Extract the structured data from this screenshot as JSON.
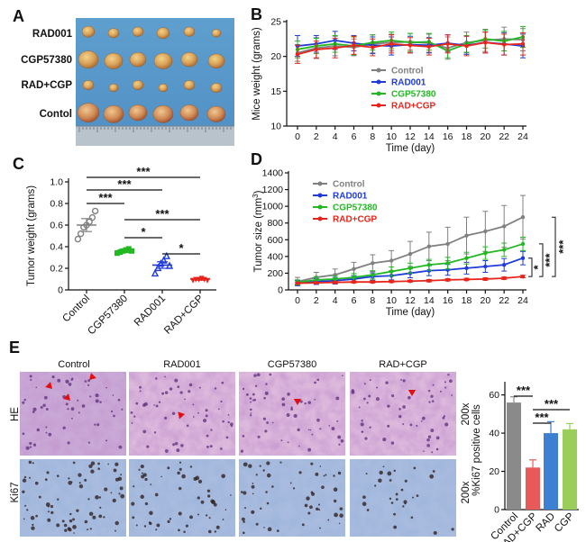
{
  "panel_labels": {
    "a": "A",
    "b": "B",
    "c": "C",
    "d": "D",
    "e": "E"
  },
  "panel_a": {
    "row_labels": [
      "RAD001",
      "CGP57380",
      "RAD+CGP",
      "Contol"
    ]
  },
  "panel_e": {
    "column_labels": [
      "Control",
      "RAD001",
      "CGP57380",
      "RAD+CGP"
    ],
    "row_labels": [
      "HE",
      "Ki67"
    ],
    "magnification_labels": [
      "200x",
      "200x"
    ]
  },
  "colors": {
    "control": "#808080",
    "rad001": "#1f3bdb",
    "cgp57380": "#22b822",
    "radcgp": "#e8251b",
    "arrow": "#e01010",
    "bar_control": "#8a8a8a",
    "bar_radcgp": "#e85a5a",
    "bar_rad": "#3d7fd1",
    "bar_cgp": "#9acd5a"
  },
  "chart_data": [
    {
      "id": "B",
      "type": "line",
      "title": "",
      "xlabel": "Time (day)",
      "ylabel": "Mice weight (grams)",
      "x": [
        0,
        2,
        4,
        6,
        8,
        10,
        12,
        14,
        16,
        18,
        20,
        22,
        24
      ],
      "xticks": [
        "0",
        "2",
        "4",
        "6",
        "8",
        "10",
        "12",
        "14",
        "16",
        "18",
        "20",
        "22",
        "24"
      ],
      "yticks": [
        "10",
        "15",
        "20",
        "25"
      ],
      "ylim": [
        10,
        25
      ],
      "legend_position": "center",
      "series": [
        {
          "name": "Control",
          "color": "#808080",
          "values": [
            20.5,
            21.2,
            21.5,
            21.3,
            21.8,
            22.0,
            22.1,
            21.9,
            21.2,
            22.0,
            22.3,
            22.5,
            22.4
          ],
          "errors": [
            1.2,
            1.5,
            1.4,
            1.2,
            1.3,
            1.2,
            1.2,
            1.3,
            1.6,
            1.5,
            1.6,
            1.7,
            1.6
          ]
        },
        {
          "name": "RAD001",
          "color": "#1f3bdb",
          "values": [
            21.5,
            21.8,
            22.3,
            21.9,
            21.6,
            21.5,
            21.7,
            21.6,
            21.9,
            21.6,
            22.0,
            21.8,
            21.5
          ],
          "errors": [
            1.5,
            1.2,
            1.3,
            1.1,
            1.2,
            1.3,
            1.2,
            1.1,
            1.2,
            1.3,
            1.5,
            1.6,
            1.7
          ]
        },
        {
          "name": "CGP57380",
          "color": "#22b822",
          "values": [
            21.0,
            21.5,
            21.8,
            21.5,
            22.0,
            22.3,
            22.0,
            22.1,
            20.8,
            21.8,
            22.5,
            22.2,
            22.8
          ],
          "errors": [
            1.2,
            1.1,
            1.2,
            1.3,
            1.1,
            1.2,
            1.3,
            1.2,
            1.0,
            1.2,
            1.3,
            1.4,
            1.5
          ]
        },
        {
          "name": "RAD+CGP",
          "color": "#e8251b",
          "values": [
            20.3,
            21.0,
            21.2,
            21.6,
            21.3,
            21.8,
            21.6,
            21.4,
            21.8,
            21.5,
            22.0,
            21.7,
            21.8
          ],
          "errors": [
            1.3,
            1.2,
            1.4,
            1.3,
            1.2,
            1.3,
            1.1,
            1.2,
            1.3,
            1.4,
            1.5,
            1.5,
            1.6
          ]
        }
      ]
    },
    {
      "id": "C",
      "type": "scatter",
      "title": "",
      "xlabel": "",
      "ylabel": "Tumor weight (grams)",
      "categories": [
        "Control",
        "CGP57380",
        "RAD001",
        "RAD+CGP"
      ],
      "yticks": [
        "0",
        "0.2",
        "0.4",
        "0.6",
        "0.8",
        "1.0"
      ],
      "ylim": [
        0,
        1.0
      ],
      "series": [
        {
          "name": "Control",
          "color": "#808080",
          "marker": "circle",
          "mean": 0.6,
          "sem": 0.06,
          "points": [
            0.47,
            0.52,
            0.58,
            0.6,
            0.63,
            0.67,
            0.73
          ]
        },
        {
          "name": "CGP57380",
          "color": "#22b822",
          "marker": "square",
          "mean": 0.36,
          "sem": 0.015,
          "points": [
            0.34,
            0.35,
            0.36,
            0.37,
            0.38,
            0.36
          ]
        },
        {
          "name": "RAD001",
          "color": "#1f3bdb",
          "marker": "triangle",
          "mean": 0.23,
          "sem": 0.03,
          "points": [
            0.15,
            0.2,
            0.24,
            0.27,
            0.31,
            0.22
          ]
        },
        {
          "name": "RAD+CGP",
          "color": "#e8251b",
          "marker": "triangle-down",
          "mean": 0.1,
          "sem": 0.01,
          "points": [
            0.09,
            0.1,
            0.1,
            0.11,
            0.1,
            0.09
          ]
        }
      ],
      "comparisons": [
        {
          "from": 0,
          "to": 3,
          "label": "***"
        },
        {
          "from": 0,
          "to": 2,
          "label": "***"
        },
        {
          "from": 0,
          "to": 1,
          "label": "***"
        },
        {
          "from": 1,
          "to": 3,
          "label": "***"
        },
        {
          "from": 1,
          "to": 2,
          "label": "*"
        },
        {
          "from": 2,
          "to": 3,
          "label": "*"
        }
      ]
    },
    {
      "id": "D",
      "type": "line",
      "title": "",
      "xlabel": "Time (day)",
      "ylabel": "Tumor size (mm³)",
      "x": [
        0,
        2,
        4,
        6,
        8,
        10,
        12,
        14,
        16,
        18,
        20,
        22,
        24
      ],
      "xticks": [
        "0",
        "2",
        "4",
        "6",
        "8",
        "10",
        "12",
        "14",
        "16",
        "18",
        "20",
        "22",
        "24"
      ],
      "yticks": [
        "0",
        "200",
        "400",
        "600",
        "800",
        "1000",
        "1200",
        "1400"
      ],
      "ylim": [
        0,
        1400
      ],
      "legend_position": "top-left",
      "series": [
        {
          "name": "Control",
          "color": "#808080",
          "values": [
            100,
            150,
            180,
            250,
            320,
            350,
            430,
            520,
            550,
            650,
            700,
            760,
            870
          ],
          "errors": [
            50,
            60,
            70,
            80,
            100,
            120,
            150,
            170,
            200,
            220,
            240,
            250,
            260
          ]
        },
        {
          "name": "RAD001",
          "color": "#1f3bdb",
          "values": [
            80,
            100,
            110,
            130,
            160,
            170,
            200,
            230,
            240,
            260,
            280,
            300,
            380
          ],
          "errors": [
            30,
            35,
            40,
            40,
            45,
            50,
            55,
            60,
            65,
            70,
            70,
            75,
            80
          ]
        },
        {
          "name": "CGP57380",
          "color": "#22b822",
          "values": [
            90,
            120,
            130,
            150,
            180,
            220,
            260,
            300,
            320,
            380,
            440,
            480,
            550
          ],
          "errors": [
            30,
            35,
            40,
            45,
            50,
            55,
            60,
            65,
            70,
            70,
            75,
            80,
            80
          ]
        },
        {
          "name": "RAD+CGP",
          "color": "#e8251b",
          "values": [
            80,
            85,
            90,
            95,
            95,
            100,
            105,
            110,
            120,
            125,
            130,
            140,
            160
          ],
          "errors": [
            10,
            10,
            12,
            12,
            12,
            12,
            12,
            14,
            14,
            14,
            15,
            15,
            15
          ]
        }
      ],
      "comparisons": [
        {
          "label": "*",
          "between": "RAD001 vs RAD+CGP"
        },
        {
          "label": "***",
          "between": "CGP57380 vs RAD+CGP"
        },
        {
          "label": "***",
          "between": "Control vs RAD+CGP"
        }
      ]
    },
    {
      "id": "E-right",
      "type": "bar",
      "title": "",
      "xlabel": "",
      "ylabel": "%Ki67 positive cells",
      "categories": [
        "Control",
        "RAD+CGP",
        "RAD",
        "CGP"
      ],
      "values": [
        56,
        22,
        40,
        42
      ],
      "errors": [
        3,
        4,
        6,
        3
      ],
      "colors": [
        "#8a8a8a",
        "#e85a5a",
        "#3d7fd1",
        "#9acd5a"
      ],
      "yticks": [
        "0",
        "20",
        "40",
        "60"
      ],
      "ylim": [
        0,
        65
      ],
      "comparisons": [
        {
          "from": 0,
          "to": 1,
          "label": "***"
        },
        {
          "from": 1,
          "to": 2,
          "label": "***"
        },
        {
          "from": 1,
          "to": 3,
          "label": "***"
        }
      ]
    }
  ]
}
